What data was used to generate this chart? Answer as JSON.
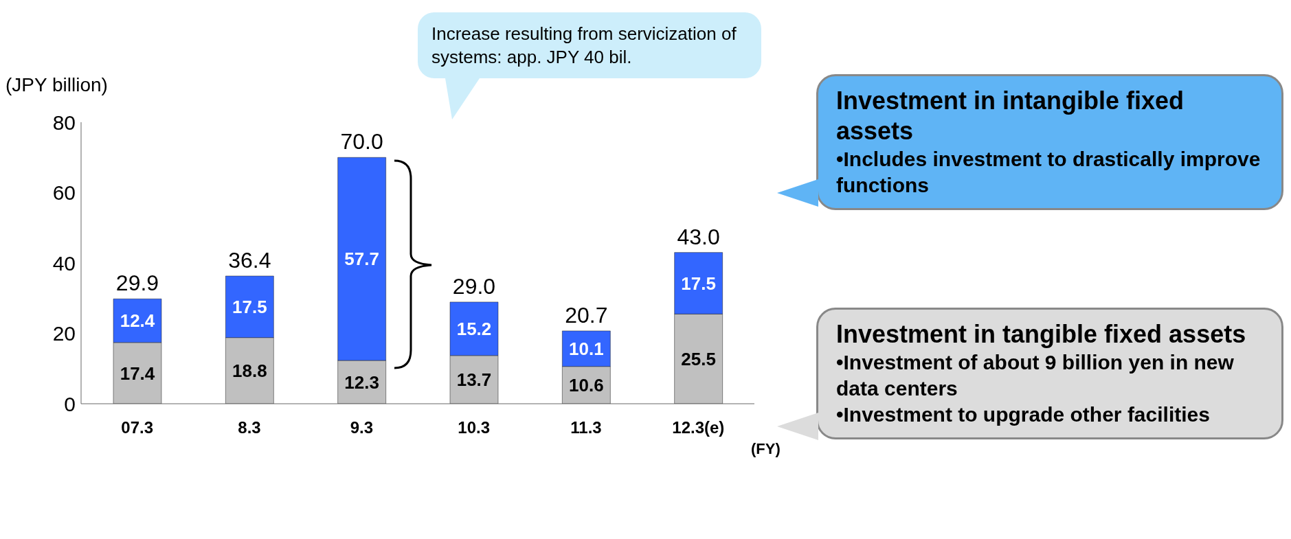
{
  "chart_data": {
    "type": "bar",
    "stacked": true,
    "ylabel": "(JPY billion)",
    "xlabel": "(FY)",
    "categories": [
      "07.3",
      "8.3",
      "9.3",
      "10.3",
      "11.3",
      "12.3(e)"
    ],
    "series": [
      {
        "name": "Investment in tangible fixed assets",
        "color": "#c0c0c0",
        "values": [
          17.4,
          18.8,
          12.3,
          13.7,
          10.6,
          25.5
        ]
      },
      {
        "name": "Investment in intangible fixed assets",
        "color": "#3366ff",
        "values": [
          12.4,
          17.5,
          57.7,
          15.2,
          10.1,
          17.5
        ]
      }
    ],
    "totals": [
      "29.9",
      "36.4",
      "70.0",
      "29.0",
      "20.7",
      "43.0"
    ],
    "data_labels": true,
    "ylim": [
      0,
      80
    ],
    "yticks": [
      0,
      20,
      40,
      60,
      80
    ],
    "legend": "right",
    "annotations": [
      "Increase resulting from servicization of systems: app. JPY 40 bil.",
      "•Includes investment to drastically improve functions",
      "•Investment of about 9 billion yen in new data centers",
      "•Investment to upgrade other facilities"
    ]
  }
}
